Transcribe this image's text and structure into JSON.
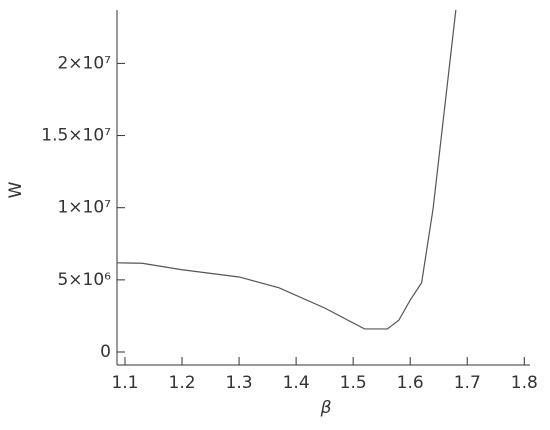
{
  "chart_data": {
    "type": "line",
    "xlabel": "β",
    "ylabel": "W",
    "x": [
      1.086,
      1.13,
      1.2,
      1.3,
      1.37,
      1.45,
      1.52,
      1.56,
      1.58,
      1.6,
      1.62,
      1.64,
      1.66,
      1.68
    ],
    "series": [
      {
        "color": "#555555",
        "values": [
          6180000,
          6150000,
          5700000,
          5200000,
          4450000,
          3050000,
          1600000,
          1600000,
          2200000,
          3600000,
          4800000,
          9900000,
          16800000,
          23700000
        ]
      }
    ],
    "xlim": [
      1.086,
      1.81
    ],
    "ylim": [
      -900000,
      23700000
    ],
    "xticks": [
      1.1,
      1.2,
      1.3,
      1.4,
      1.5,
      1.6,
      1.7,
      1.8
    ],
    "yticks": [
      0,
      {
        "value": 5000000,
        "label": "5×10⁶"
      },
      {
        "value": 10000000,
        "label": "1×10⁷"
      },
      {
        "value": 15000000,
        "label": "1.5×10⁷"
      },
      {
        "value": 20000000,
        "label": "2×10⁷"
      }
    ]
  }
}
